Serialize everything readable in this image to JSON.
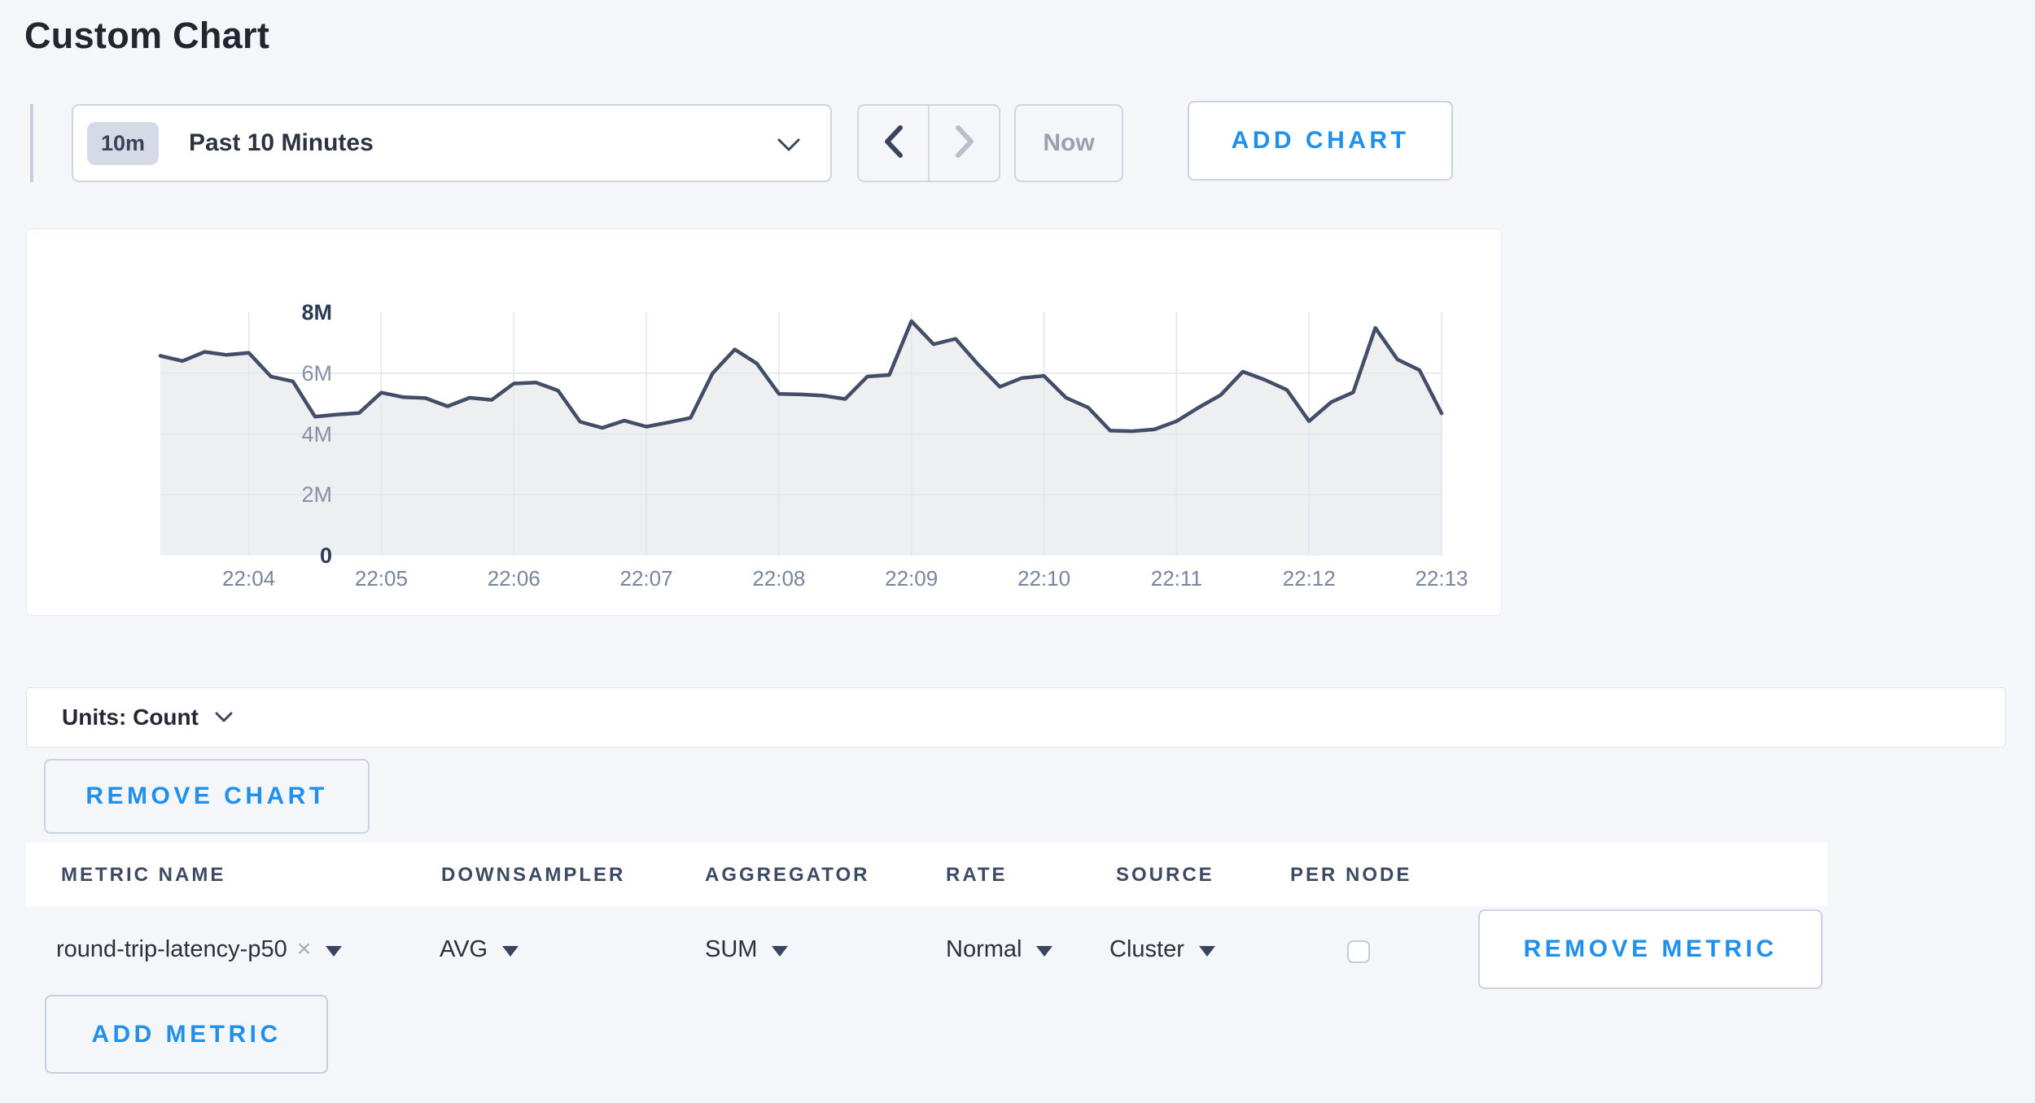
{
  "page": {
    "title": "Custom Chart"
  },
  "colors": {
    "accent_blue": "#2090ee",
    "navy_text": "#3d4a63",
    "line": "#424d68",
    "area_fill": "rgba(66,77,104,0.09)",
    "gridline": "#e2e6ee"
  },
  "glyphs": {
    "close": "×"
  },
  "toolbar": {
    "time_badge": "10m",
    "time_label": "Past 10 Minutes",
    "time_select_icon": "chevron-down-icon",
    "prev_icon": "chevron-left-icon",
    "next_icon": "chevron-right-icon",
    "now_label": "Now",
    "add_chart_label": "ADD CHART"
  },
  "chart_data": {
    "type": "area",
    "series_name": "round-trip-latency-p50",
    "unit": "Count",
    "x_tick_labels": [
      "22:04",
      "22:05",
      "22:06",
      "22:07",
      "22:08",
      "22:09",
      "22:10",
      "22:11",
      "22:12",
      "22:13"
    ],
    "x_tick_minutes": [
      0,
      1,
      2,
      3,
      4,
      5,
      6,
      7,
      8,
      9
    ],
    "y_tick_labels": [
      "8M",
      "6M",
      "4M",
      "2M",
      "0"
    ],
    "y_tick_values": [
      8,
      6,
      4,
      2,
      0
    ],
    "ylim": [
      0,
      8
    ],
    "xlim_minutes": [
      -0.667,
      9.0
    ],
    "grid": true,
    "legend": "none",
    "points_minutes_vs_millions": [
      [
        -0.667,
        6.57
      ],
      [
        -0.5,
        6.4
      ],
      [
        -0.333,
        6.7
      ],
      [
        -0.167,
        6.6
      ],
      [
        0,
        6.67
      ],
      [
        0.167,
        5.89
      ],
      [
        0.333,
        5.73
      ],
      [
        0.5,
        4.57
      ],
      [
        0.667,
        4.64
      ],
      [
        0.833,
        4.69
      ],
      [
        1,
        5.36
      ],
      [
        1.167,
        5.21
      ],
      [
        1.333,
        5.18
      ],
      [
        1.5,
        4.91
      ],
      [
        1.667,
        5.19
      ],
      [
        1.833,
        5.12
      ],
      [
        2,
        5.66
      ],
      [
        2.167,
        5.69
      ],
      [
        2.333,
        5.43
      ],
      [
        2.5,
        4.4
      ],
      [
        2.667,
        4.2
      ],
      [
        2.833,
        4.44
      ],
      [
        3,
        4.24
      ],
      [
        3.167,
        4.38
      ],
      [
        3.333,
        4.53
      ],
      [
        3.5,
        6.0
      ],
      [
        3.667,
        6.78
      ],
      [
        3.833,
        6.32
      ],
      [
        4,
        5.32
      ],
      [
        4.167,
        5.3
      ],
      [
        4.333,
        5.26
      ],
      [
        4.5,
        5.15
      ],
      [
        4.667,
        5.89
      ],
      [
        4.833,
        5.94
      ],
      [
        5,
        7.71
      ],
      [
        5.167,
        6.95
      ],
      [
        5.333,
        7.13
      ],
      [
        5.5,
        6.3
      ],
      [
        5.667,
        5.55
      ],
      [
        5.833,
        5.84
      ],
      [
        6,
        5.91
      ],
      [
        6.167,
        5.19
      ],
      [
        6.333,
        4.87
      ],
      [
        6.5,
        4.11
      ],
      [
        6.667,
        4.09
      ],
      [
        6.833,
        4.15
      ],
      [
        7,
        4.42
      ],
      [
        7.167,
        4.87
      ],
      [
        7.333,
        5.28
      ],
      [
        7.5,
        6.05
      ],
      [
        7.667,
        5.78
      ],
      [
        7.833,
        5.45
      ],
      [
        8,
        4.42
      ],
      [
        8.167,
        5.05
      ],
      [
        8.333,
        5.37
      ],
      [
        8.5,
        7.49
      ],
      [
        8.667,
        6.45
      ],
      [
        8.833,
        6.1
      ],
      [
        9,
        4.68
      ]
    ]
  },
  "units_bar": {
    "label": "Units: Count"
  },
  "remove_chart_label": "REMOVE CHART",
  "metrics_table": {
    "columns": [
      "METRIC NAME",
      "DOWNSAMPLER",
      "AGGREGATOR",
      "RATE",
      "SOURCE",
      "PER NODE"
    ],
    "row": {
      "metric_name": "round-trip-latency-p50",
      "downsampler": "AVG",
      "aggregator": "SUM",
      "rate": "Normal",
      "source": "Cluster",
      "per_node_checked": false,
      "remove_label": "REMOVE METRIC"
    },
    "add_metric_label": "ADD METRIC"
  }
}
